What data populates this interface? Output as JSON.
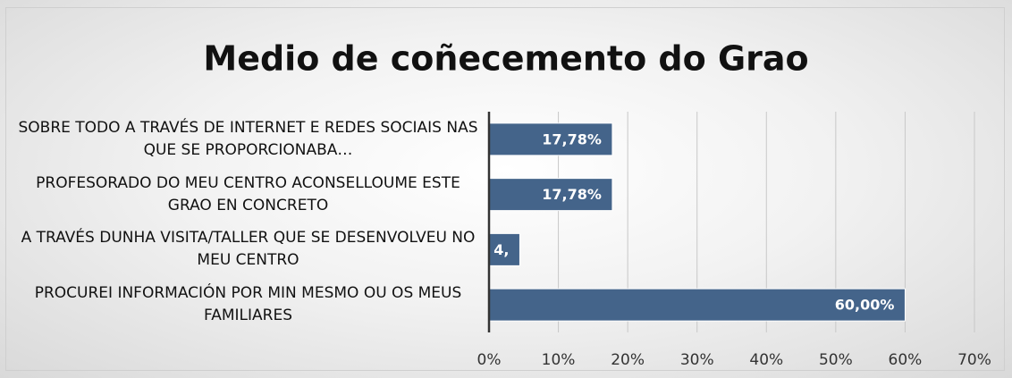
{
  "chart_data": {
    "type": "barh",
    "title": "Medio de coñecemento do Grao",
    "categories": [
      "SOBRE TODO A TRAVÉS DE INTERNET E REDES SOCIAIS NAS QUE SE PROPORCIONABA…",
      "PROFESORADO DO MEU CENTRO ACONSELLOUME ESTE GRAO EN CONCRETO",
      "A TRAVÉS DUNHA VISITA/TALLER QUE SE DESENVOLVEU NO MEU CENTRO",
      "PROCUREI INFORMACIÓN POR MIN MESMO OU OS MEUS FAMILIARES"
    ],
    "values": [
      17.78,
      17.78,
      4.44,
      60.0
    ],
    "value_labels": [
      "17,78%",
      "17,78%",
      "4,",
      "60,00%"
    ],
    "color": "#44648a",
    "xlim": [
      0,
      70
    ],
    "xticks": [
      {
        "value": 0,
        "label": "0%"
      },
      {
        "value": 10,
        "label": "10%"
      },
      {
        "value": 20,
        "label": "20%"
      },
      {
        "value": 30,
        "label": "30%"
      },
      {
        "value": 40,
        "label": "40%"
      },
      {
        "value": 50,
        "label": "50%"
      },
      {
        "value": 60,
        "label": "60%"
      },
      {
        "value": 70,
        "label": "70%"
      }
    ],
    "grid": true
  }
}
